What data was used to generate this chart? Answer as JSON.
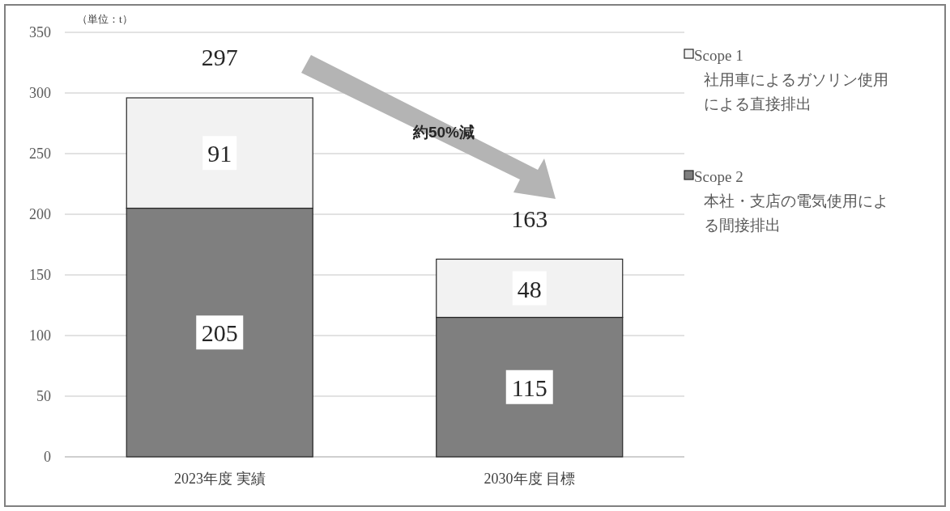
{
  "chart_data": {
    "type": "bar",
    "stacked": true,
    "ylabel": "（単位：t）",
    "categories": [
      "2023年度 実績",
      "2030年度 目標"
    ],
    "series": [
      {
        "name": "Scope 2\n本社・支店の電気使用による間接排出",
        "color": "#7f7f7f",
        "values": [
          205,
          115
        ]
      },
      {
        "name": "Scope 1\n社用車によるガソリン使用による直接排出",
        "color": "#f2f2f2",
        "values": [
          91,
          48
        ]
      }
    ],
    "data_labels": true,
    "totals": [
      "297",
      "163"
    ],
    "annotations": [
      "約50%減"
    ],
    "ylim": [
      0,
      350
    ],
    "yticks": [
      0,
      50,
      100,
      150,
      200,
      250,
      300,
      350
    ],
    "grid": "y",
    "legend": "right"
  }
}
